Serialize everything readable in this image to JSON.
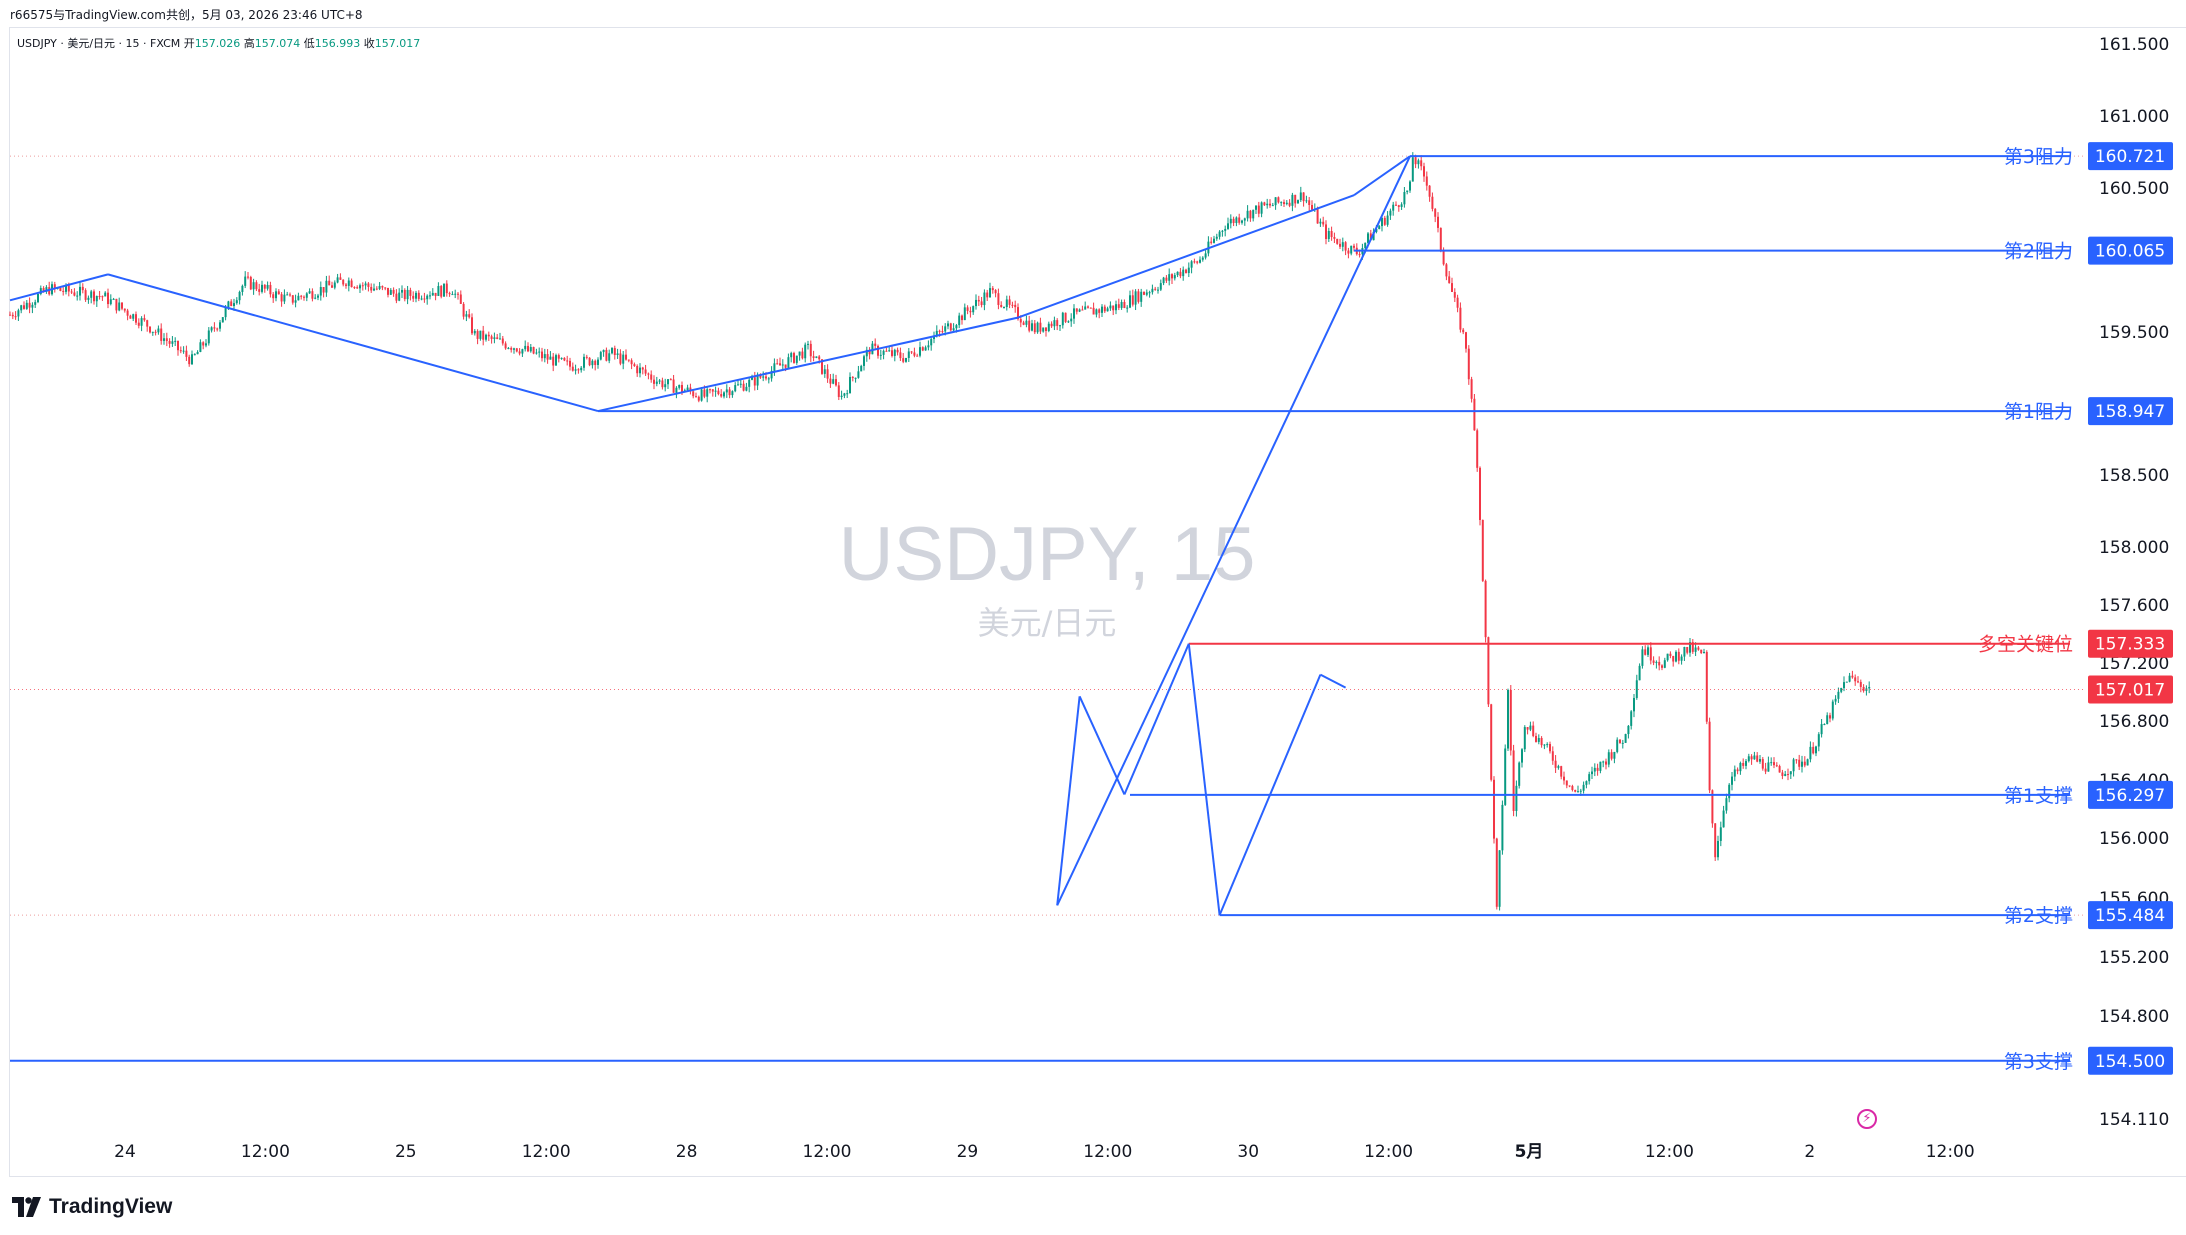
{
  "credit": "r66575与TradingView.com共创，5月 03, 2026 23:46 UTC+8",
  "legend": {
    "symbol": "USDJPY · 美元/日元 · 15 · FXCM",
    "open_label": "开",
    "open": "157.026",
    "high_label": "高",
    "high": "157.074",
    "low_label": "低",
    "low": "156.993",
    "close_label": "收",
    "close": "157.017"
  },
  "watermark": {
    "title": "USDJPY, 15",
    "subtitle": "美元/日元"
  },
  "brand": {
    "text": "TradingView",
    "logo": "tradingview-logo"
  },
  "icons": {
    "alert": "lightning-bolt-icon"
  },
  "colors": {
    "up": "#089981",
    "down": "#f23645",
    "trendline": "#2962ff",
    "key_level": "#f23645",
    "axis_text": "#131722",
    "watermark": "#d1d4dc"
  },
  "chart_data": {
    "type": "candlestick",
    "symbol": "USDJPY",
    "interval": "15",
    "ylim": [
      154.11,
      161.5
    ],
    "y_ticks": [
      "161.500",
      "161.000",
      "160.500",
      "159.500",
      "158.500",
      "158.000",
      "157.600",
      "157.200",
      "156.800",
      "156.400",
      "156.000",
      "155.600",
      "155.200",
      "154.800",
      "154.110"
    ],
    "x_ticks": [
      "24",
      "12:00",
      "25",
      "12:00",
      "28",
      "12:00",
      "29",
      "12:00",
      "30",
      "12:00",
      "5月",
      "12:00",
      "2",
      "12:00"
    ],
    "last_price": "157.017",
    "levels": [
      {
        "name": "第3阻力",
        "value": "160.721",
        "type": "resistance"
      },
      {
        "name": "第2阻力",
        "value": "160.065",
        "type": "resistance"
      },
      {
        "name": "第1阻力",
        "value": "158.947",
        "type": "resistance"
      },
      {
        "name": "多空关键位",
        "value": "157.333",
        "type": "pivot"
      },
      {
        "name": "第1支撑",
        "value": "156.297",
        "type": "support"
      },
      {
        "name": "第2支撑",
        "value": "155.484",
        "type": "support"
      },
      {
        "name": "第3支撑",
        "value": "154.500",
        "type": "support"
      }
    ],
    "price_path": [
      [
        0,
        159.62
      ],
      [
        14,
        159.8
      ],
      [
        33,
        159.75
      ],
      [
        49,
        159.55
      ],
      [
        65,
        159.3
      ],
      [
        84,
        159.85
      ],
      [
        100,
        159.72
      ],
      [
        120,
        159.86
      ],
      [
        140,
        159.75
      ],
      [
        158,
        159.8
      ],
      [
        166,
        159.48
      ],
      [
        180,
        159.4
      ],
      [
        200,
        159.26
      ],
      [
        215,
        159.35
      ],
      [
        232,
        159.15
      ],
      [
        248,
        159.05
      ],
      [
        265,
        159.15
      ],
      [
        285,
        159.38
      ],
      [
        297,
        159.05
      ],
      [
        307,
        159.38
      ],
      [
        320,
        159.32
      ],
      [
        336,
        159.55
      ],
      [
        350,
        159.78
      ],
      [
        366,
        159.52
      ],
      [
        380,
        159.62
      ],
      [
        396,
        159.68
      ],
      [
        412,
        159.85
      ],
      [
        425,
        160.0
      ],
      [
        434,
        160.25
      ],
      [
        445,
        160.35
      ],
      [
        462,
        160.45
      ],
      [
        470,
        160.18
      ],
      [
        481,
        160.05
      ],
      [
        500,
        160.5
      ],
      [
        501,
        160.72
      ],
      [
        506,
        160.55
      ],
      [
        512,
        160.0
      ],
      [
        520,
        159.4
      ],
      [
        524,
        158.6
      ],
      [
        526,
        157.8
      ],
      [
        528,
        156.9
      ],
      [
        531,
        155.5
      ],
      [
        535,
        157.0
      ],
      [
        537,
        156.2
      ],
      [
        541,
        156.8
      ],
      [
        551,
        156.55
      ],
      [
        559,
        156.3
      ],
      [
        568,
        156.5
      ],
      [
        577,
        156.7
      ],
      [
        583,
        157.3
      ],
      [
        590,
        157.2
      ],
      [
        600,
        157.3
      ],
      [
        605,
        157.25
      ],
      [
        607,
        156.3
      ],
      [
        609,
        155.9
      ],
      [
        614,
        156.4
      ],
      [
        622,
        156.55
      ],
      [
        632,
        156.45
      ],
      [
        642,
        156.55
      ],
      [
        650,
        156.85
      ],
      [
        656,
        157.1
      ],
      [
        664,
        157.02
      ]
    ]
  }
}
